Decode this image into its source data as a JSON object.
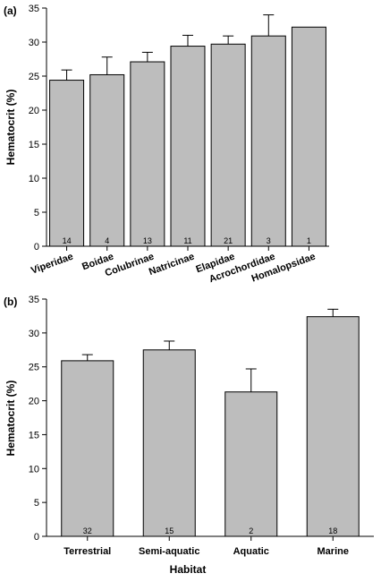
{
  "chart_data": [
    {
      "type": "bar",
      "panel_label": "(a)",
      "categories": [
        "Viperidae",
        "Boidae",
        "Colubrinae",
        "Natricinae",
        "Elapidae",
        "Acrochordidae",
        "Homalopsidae"
      ],
      "values": [
        24.4,
        25.2,
        27.1,
        29.4,
        29.7,
        30.9,
        32.2
      ],
      "errors": [
        1.5,
        2.6,
        1.4,
        1.6,
        1.2,
        3.1,
        0
      ],
      "sample_sizes": [
        "14",
        "4",
        "13",
        "11",
        "21",
        "3",
        "1"
      ],
      "ylabel": "Hematocrit (%)",
      "xlabel": "",
      "ylim": [
        0,
        35
      ],
      "yticks": [
        0,
        5,
        10,
        15,
        20,
        25,
        30,
        35
      ]
    },
    {
      "type": "bar",
      "panel_label": "(b)",
      "categories": [
        "Terrestrial",
        "Semi-aquatic",
        "Aquatic",
        "Marine"
      ],
      "values": [
        25.9,
        27.5,
        21.3,
        32.4
      ],
      "errors": [
        0.9,
        1.3,
        3.4,
        1.1
      ],
      "sample_sizes": [
        "32",
        "15",
        "2",
        "18"
      ],
      "ylabel": "Hematocrit (%)",
      "xlabel": "Habitat",
      "ylim": [
        0,
        35
      ],
      "yticks": [
        0,
        5,
        10,
        15,
        20,
        25,
        30,
        35
      ]
    }
  ],
  "colors": {
    "bar_fill": "#bdbdbd",
    "bar_stroke": "#000000"
  }
}
